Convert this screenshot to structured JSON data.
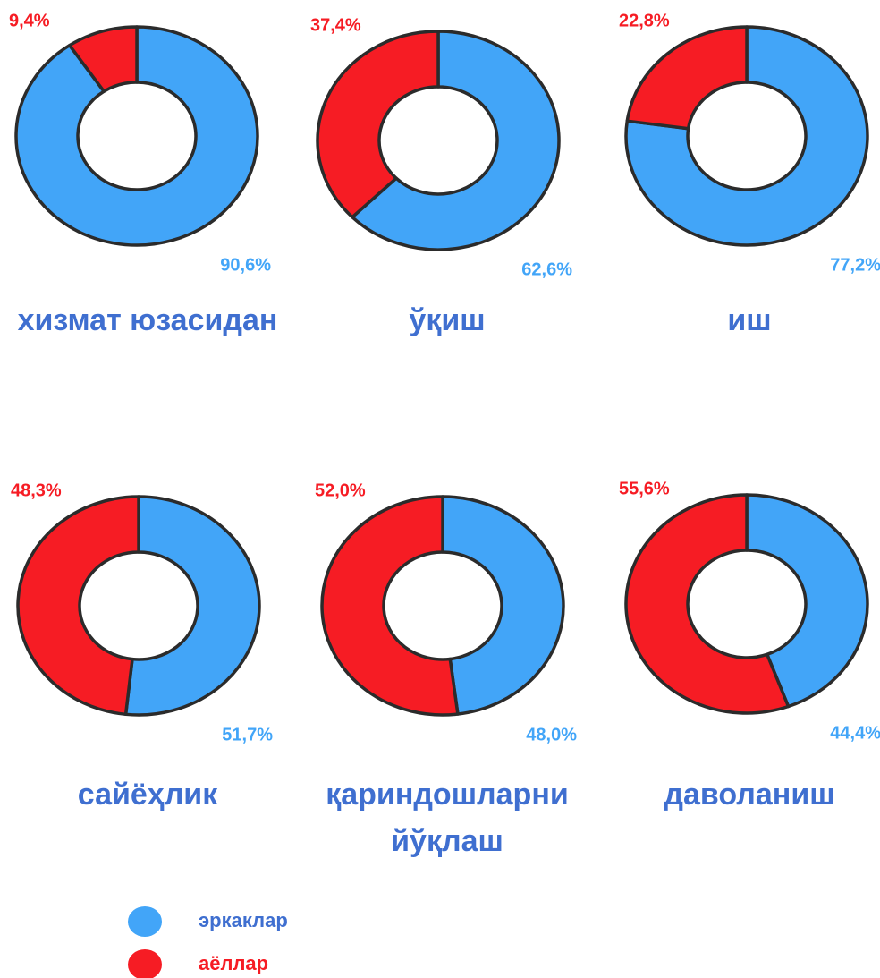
{
  "chart_data": [
    {
      "type": "donut",
      "title": "хизмат юзасидан",
      "values": [
        90.6,
        9.4
      ],
      "value_labels": [
        "90,6%",
        "9,4%"
      ]
    },
    {
      "type": "donut",
      "title": "ўқиш",
      "values": [
        62.6,
        37.4
      ],
      "value_labels": [
        "62,6%",
        "37,4%"
      ]
    },
    {
      "type": "donut",
      "title": "иш",
      "values": [
        77.2,
        22.8
      ],
      "value_labels": [
        "77,2%",
        "22,8%"
      ]
    },
    {
      "type": "donut",
      "title": "сайёҳлик",
      "values": [
        51.7,
        48.3
      ],
      "value_labels": [
        "51,7%",
        "48,3%"
      ]
    },
    {
      "type": "donut",
      "title": "қариндошларни йўқлаш",
      "values": [
        48.0,
        52.0
      ],
      "value_labels": [
        "48,0%",
        "52,0%"
      ]
    },
    {
      "type": "donut",
      "title": "даволаниш",
      "values": [
        44.4,
        55.6
      ],
      "value_labels": [
        "44,4%",
        "55,6%"
      ]
    }
  ],
  "legend": {
    "entries": [
      {
        "name": "эркаклар",
        "color": "#42a5f8"
      },
      {
        "name": "аёллар",
        "color": "#f61c24"
      }
    ]
  }
}
